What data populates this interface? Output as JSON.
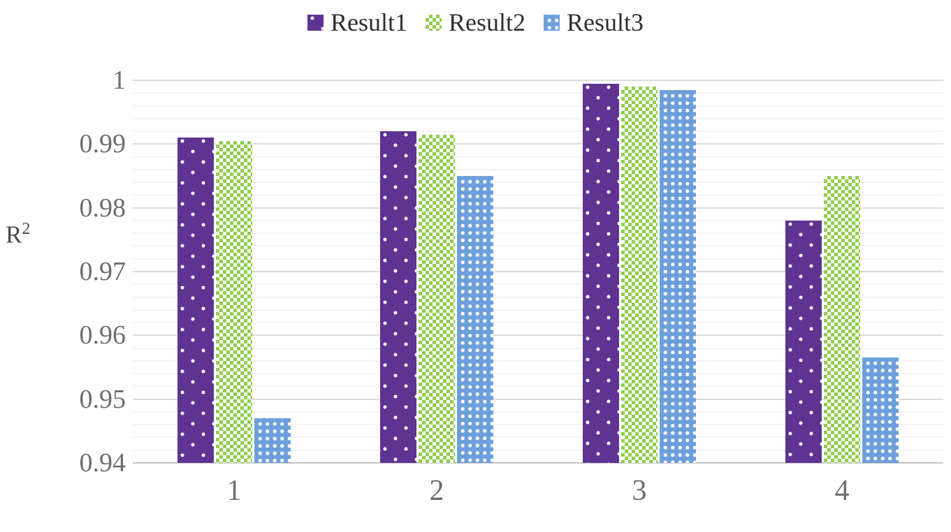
{
  "chart_data": {
    "type": "bar",
    "title": "",
    "categories": [
      "1",
      "2",
      "3",
      "4"
    ],
    "series": [
      {
        "name": "Result1",
        "color": "#5E3391",
        "pattern": "purple-sparse-white-dots",
        "values": [
          0.991,
          0.992,
          0.9995,
          0.978
        ]
      },
      {
        "name": "Result2",
        "color": "#8FCE4D",
        "pattern": "green-white-checkerboard",
        "values": [
          0.9905,
          0.9915,
          0.999,
          0.985
        ]
      },
      {
        "name": "Result3",
        "color": "#6C9FDB",
        "pattern": "blue-white-dot-grid",
        "values": [
          0.947,
          0.985,
          0.9985,
          0.9565
        ]
      }
    ],
    "xlabel": "",
    "ylabel": "R²",
    "ylabel_base": "R",
    "ylabel_sup": "2",
    "ylim": [
      0.94,
      1.0
    ],
    "y_major_step": 0.01,
    "y_minor_step": 0.002,
    "y_tick_labels": [
      "1",
      "0.99",
      "0.98",
      "0.97",
      "0.96",
      "0.95",
      "0.94"
    ],
    "grid": "horizontal, major and minor, on",
    "legend_position": "top-center",
    "style": {
      "background": "#FFFFFF",
      "major_gridline_color": "#DCDCDC",
      "minor_gridline_color": "#F3F3F3",
      "axis_line_color": "#C6C6C6",
      "tick_text_color": "#6E6E6E",
      "legend_text_color": "#303030"
    }
  }
}
